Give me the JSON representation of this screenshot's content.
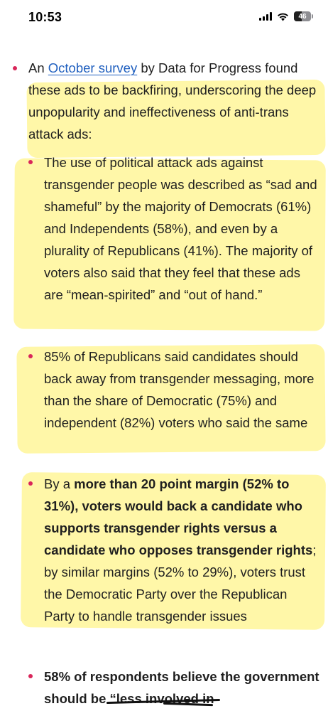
{
  "status_bar": {
    "time": "10:53",
    "battery": "46",
    "icons": [
      "signal-icon",
      "wifi-icon",
      "battery-icon"
    ]
  },
  "article": {
    "colors": {
      "bullet": "#d9265a",
      "highlight": "#fff7a8",
      "link": "#1f5fbf"
    },
    "intro": {
      "prefix": "An ",
      "link_text": "October survey",
      "suffix": " by Data for Progress found these ads to be backfiring, underscoring the deep unpopularity and ineffectiveness of anti-trans attack ads:"
    },
    "sub_items": [
      {
        "text": "The use of political attack ads against transgender people was described as “sad and shameful” by the majority of Democrats (61%) and Independents (58%), and even by a plurality of Republicans (41%). The majority of voters also said that they feel that these ads are “mean-spirited” and “out of hand.”"
      },
      {
        "text": "85% of Republicans said candidates should back away from transgender messaging, more than the share of Democratic (75%) and independent (82%) voters who said the same"
      },
      {
        "prefix": "By a ",
        "bold": "more than 20 point margin (52% to 31%), voters would back a candidate who supports transgender rights versus a candidate who opposes transgender rights",
        "suffix": "; by similar margins (52% to 29%), voters trust the Democratic Party over the Republican Party to handle transgender issues"
      }
    ],
    "last_item": {
      "bold": "58% of respondents believe the government should be “less involved in"
    }
  }
}
